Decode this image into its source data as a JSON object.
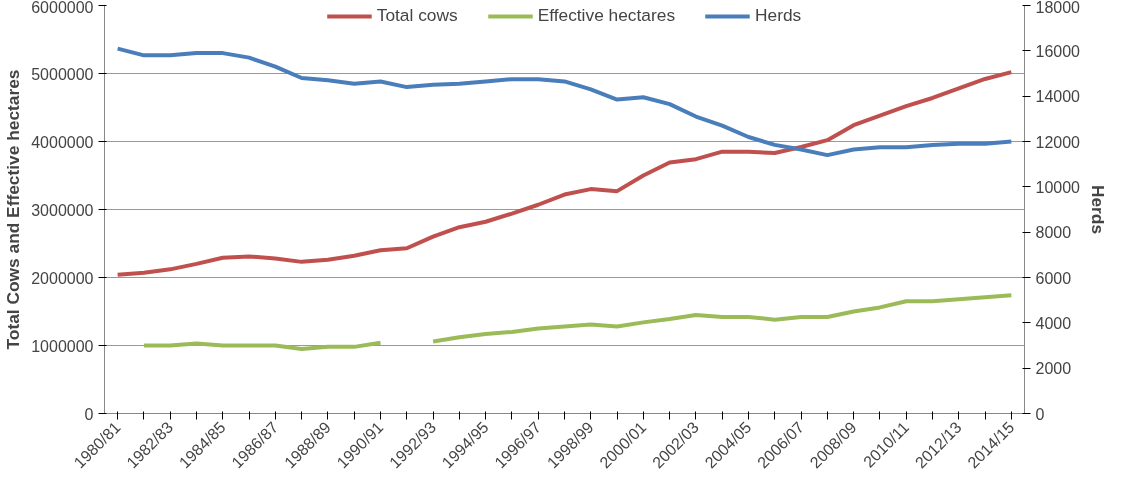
{
  "chart_data": {
    "type": "line",
    "categories": [
      "1980/81",
      null,
      "1982/83",
      null,
      "1984/85",
      null,
      "1986/87",
      null,
      "1988/89",
      null,
      "1990/91",
      null,
      "1992/93",
      null,
      "1994/95",
      null,
      "1996/97",
      null,
      "1998/99",
      null,
      "2000/01",
      null,
      "2002/03",
      null,
      "2004/05",
      null,
      "2006/07",
      null,
      "2008/09",
      null,
      "2010/11",
      null,
      "2012/13",
      null,
      "2014/15"
    ],
    "series": [
      {
        "name": "Total cows",
        "color": "#c0504d",
        "values": [
          2040000,
          2070000,
          2120000,
          2200000,
          2290000,
          2310000,
          2280000,
          2230000,
          2260000,
          2320000,
          2400000,
          2430000,
          2600000,
          2740000,
          2820000,
          2940000,
          3070000,
          3220000,
          3300000,
          3270000,
          3500000,
          3690000,
          3740000,
          3850000,
          3850000,
          3830000,
          3920000,
          4020000,
          4240000,
          4380000,
          4520000,
          4640000,
          4780000,
          4920000,
          5020000
        ]
      },
      {
        "name": "Effective hectares",
        "color": "#9bbb59",
        "values": [
          null,
          1000000,
          1000000,
          1030000,
          1000000,
          1000000,
          1000000,
          950000,
          980000,
          980000,
          1040000,
          null,
          1060000,
          1120000,
          1170000,
          1200000,
          1250000,
          1280000,
          1310000,
          1280000,
          1340000,
          1390000,
          1450000,
          1420000,
          1420000,
          1380000,
          1420000,
          1420000,
          1500000,
          1560000,
          1650000,
          1650000,
          1680000,
          1710000,
          1740000
        ]
      },
      {
        "name": "Herds",
        "color": "#4a7ebb",
        "axis": "y2",
        "values": [
          16100,
          15800,
          15800,
          15900,
          15900,
          15700,
          15300,
          14800,
          14700,
          14550,
          14650,
          14400,
          14500,
          14550,
          14650,
          14750,
          14750,
          14650,
          14300,
          13850,
          13950,
          13650,
          13100,
          12700,
          12200,
          11850,
          11650,
          11400,
          11650,
          11750,
          11750,
          11850,
          11900,
          11900,
          12000
        ]
      }
    ],
    "ylabel": "Total Cows and Effective hectares",
    "y2label": "Herds",
    "ylim": [
      0,
      6000000
    ],
    "yticks": [
      0,
      1000000,
      2000000,
      3000000,
      4000000,
      5000000,
      6000000
    ],
    "y2lim": [
      0,
      18000
    ],
    "y2ticks": [
      0,
      2000,
      4000,
      6000,
      8000,
      10000,
      12000,
      14000,
      16000,
      18000
    ],
    "grid": "y",
    "legend": "top",
    "marker": "none",
    "line_style": "solid"
  }
}
